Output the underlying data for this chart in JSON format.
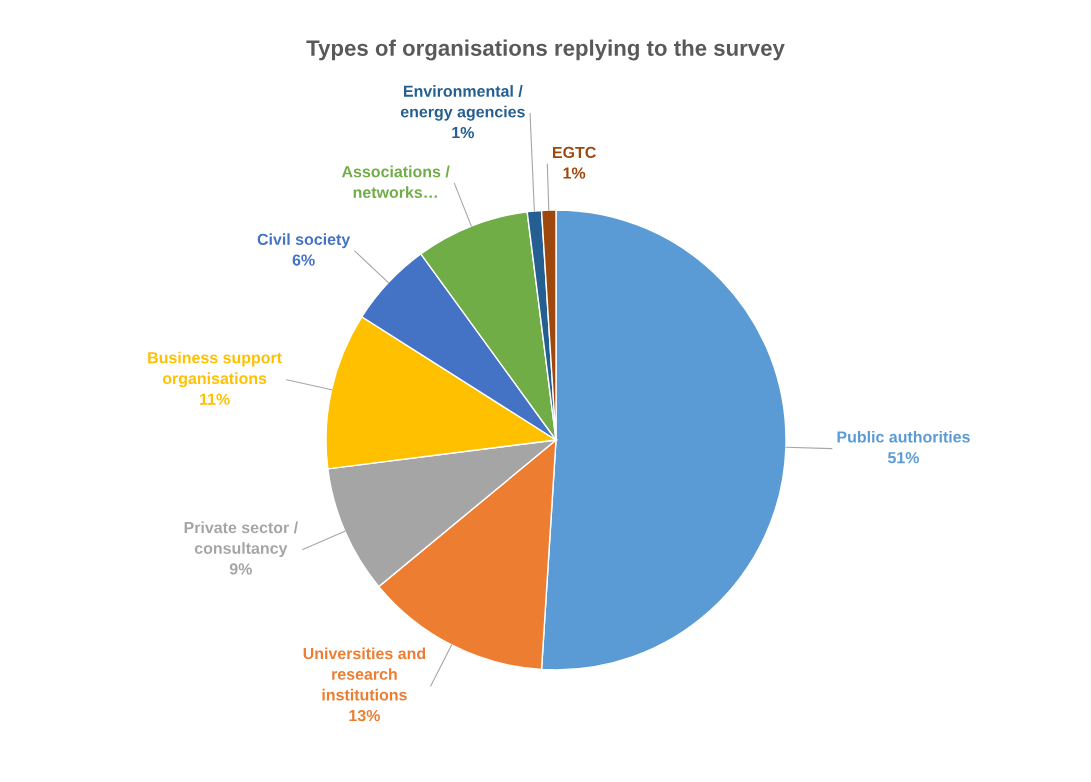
{
  "chart_data": {
    "type": "pie",
    "title": "Types of organisations replying to the survey",
    "categories": [
      "Public authorities",
      "Universities and\nresearch\ninstitutions",
      "Private sector /\nconsultancy",
      "Business support\norganisations",
      "Civil society",
      "Associations /\nnetworks…",
      "Environmental /\nenergy agencies",
      "EGTC"
    ],
    "values": [
      51,
      13,
      9,
      11,
      6,
      8,
      1,
      1
    ],
    "value_labels": [
      "51%",
      "13%",
      "9%",
      "11%",
      "6%",
      null,
      "1%",
      "1%"
    ],
    "colors": [
      "#5b9bd5",
      "#ed7d31",
      "#a5a5a5",
      "#ffc000",
      "#4472c4",
      "#70ad47",
      "#255e91",
      "#9e480e"
    ],
    "legend": false
  }
}
